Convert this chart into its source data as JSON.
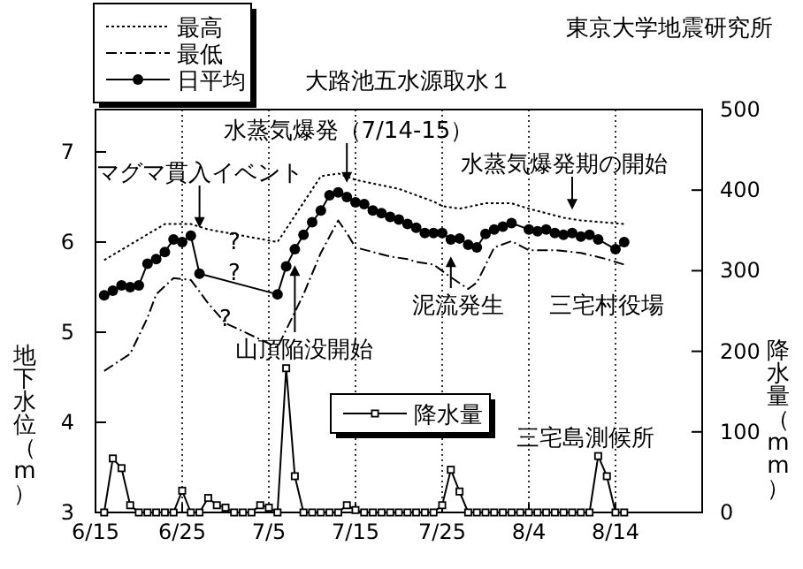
{
  "chart_data": {
    "type": "line",
    "title": "大路池五水源取水１",
    "ylabel": "地下水位（m）",
    "y2label": "降水量（mm）",
    "xlim": [
      "--06-15",
      "--08-24"
    ],
    "xticks": [
      {
        "value": "--06-15",
        "label": "6/15"
      },
      {
        "value": "--06-25",
        "label": "6/25"
      },
      {
        "value": "--07-05",
        "label": "7/5"
      },
      {
        "value": "--07-15",
        "label": "7/15"
      },
      {
        "value": "--07-25",
        "label": "7/25"
      },
      {
        "value": "--08-04",
        "label": "8/4"
      },
      {
        "value": "--08-14",
        "label": "8/14"
      }
    ],
    "ylim": [
      3,
      7.47
    ],
    "yticks": [
      3,
      4,
      5,
      6,
      7
    ],
    "y2lim": [
      0,
      500
    ],
    "y2ticks": [
      0,
      100,
      200,
      300,
      400,
      500
    ],
    "grid": "x",
    "legend": "top left",
    "series": [
      {
        "name": "最高",
        "color": "#000000",
        "line_style": "dotted",
        "marker": "none",
        "x": [
          "--06-16",
          "--06-23",
          "--06-26",
          "--06-28",
          "--07-06",
          "--07-11",
          "--07-13",
          "--07-15",
          "--07-18",
          "--07-20",
          "--07-24",
          "--07-25",
          "--07-27",
          "--07-30",
          "--08-02",
          "--08-04",
          "--08-08",
          "--08-10",
          "--08-15"
        ],
        "values": [
          5.8,
          6.2,
          6.2,
          6.14,
          6.0,
          6.73,
          6.76,
          6.69,
          6.63,
          6.59,
          6.45,
          6.4,
          6.37,
          6.43,
          6.43,
          6.37,
          6.27,
          6.24,
          6.2
        ]
      },
      {
        "name": "最低",
        "color": "#000000",
        "line_style": "dashed",
        "marker": "none",
        "x": [
          "--06-16",
          "--06-19",
          "--06-21",
          "--06-22",
          "--06-24",
          "--06-26",
          "--06-28",
          "--06-30",
          "--07-06",
          "--07-09",
          "--07-11",
          "--07-13",
          "--07-14",
          "--07-15",
          "--07-19",
          "--07-21",
          "--07-22",
          "--07-24",
          "--07-26",
          "--07-28",
          "--07-29",
          "--07-31",
          "--08-02",
          "--08-04",
          "--08-07",
          "--08-10",
          "--08-13",
          "--08-15"
        ],
        "values": [
          4.57,
          4.76,
          5.16,
          5.42,
          5.6,
          5.58,
          5.32,
          5.1,
          4.83,
          5.42,
          5.88,
          6.24,
          6.1,
          5.94,
          5.84,
          5.81,
          5.78,
          5.75,
          5.61,
          5.48,
          5.55,
          5.94,
          6.01,
          5.91,
          5.91,
          5.88,
          5.81,
          5.75
        ]
      },
      {
        "name": "日平均",
        "color": "#000000",
        "line_style": "solid",
        "marker": "circle",
        "x": [
          "--06-16",
          "--06-17",
          "--06-18",
          "--06-19",
          "--06-20",
          "--06-21",
          "--06-22",
          "--06-23",
          "--06-24",
          "--06-25",
          "--06-26",
          "--06-27",
          "--07-06",
          "--07-07",
          "--07-08",
          "--07-09",
          "--07-10",
          "--07-11",
          "--07-12",
          "--07-13",
          "--07-14",
          "--07-15",
          "--07-16",
          "--07-17",
          "--07-18",
          "--07-19",
          "--07-20",
          "--07-21",
          "--07-22",
          "--07-23",
          "--07-24",
          "--07-25",
          "--07-26",
          "--07-27",
          "--07-28",
          "--07-29",
          "--07-30",
          "--07-31",
          "--08-01",
          "--08-02",
          "--08-04",
          "--08-05",
          "--08-06",
          "--08-07",
          "--08-08",
          "--08-09",
          "--08-10",
          "--08-11",
          "--08-12",
          "--08-14",
          "--08-15"
        ],
        "values": [
          5.41,
          5.46,
          5.52,
          5.5,
          5.52,
          5.76,
          5.81,
          5.89,
          6.03,
          6.0,
          6.07,
          5.65,
          5.42,
          5.73,
          5.92,
          6.08,
          6.22,
          6.35,
          6.52,
          6.55,
          6.5,
          6.44,
          6.42,
          6.35,
          6.32,
          6.28,
          6.25,
          6.2,
          6.16,
          6.1,
          6.1,
          6.1,
          6.03,
          6.04,
          5.97,
          5.94,
          6.09,
          6.14,
          6.17,
          6.21,
          6.14,
          6.12,
          6.14,
          6.1,
          6.08,
          6.1,
          6.06,
          6.08,
          6.03,
          5.92,
          6.0
        ]
      },
      {
        "name": "降水量",
        "color": "#000000",
        "line_style": "solid",
        "marker": "square",
        "axis": "y2",
        "x": [
          "--06-16",
          "--06-17",
          "--06-18",
          "--06-19",
          "--06-20",
          "--06-21",
          "--06-22",
          "--06-23",
          "--06-24",
          "--06-25",
          "--06-26",
          "--06-27",
          "--06-28",
          "--06-29",
          "--06-30",
          "--07-01",
          "--07-02",
          "--07-03",
          "--07-04",
          "--07-05",
          "--07-06",
          "--07-07",
          "--07-08",
          "--07-09",
          "--07-10",
          "--07-11",
          "--07-12",
          "--07-13",
          "--07-14",
          "--07-15",
          "--07-16",
          "--07-17",
          "--07-18",
          "--07-19",
          "--07-20",
          "--07-21",
          "--07-22",
          "--07-23",
          "--07-24",
          "--07-25",
          "--07-26",
          "--07-27",
          "--07-28",
          "--07-29",
          "--07-30",
          "--07-31",
          "--08-01",
          "--08-02",
          "--08-03",
          "--08-04",
          "--08-05",
          "--08-06",
          "--08-07",
          "--08-08",
          "--08-09",
          "--08-10",
          "--08-11",
          "--08-12",
          "--08-13",
          "--08-14",
          "--08-15"
        ],
        "values": [
          0,
          67,
          55,
          9,
          0,
          0,
          0,
          0,
          0,
          27,
          0,
          0,
          18,
          9,
          6,
          0,
          0,
          0,
          9,
          6,
          0,
          179,
          45,
          0,
          0,
          0,
          0,
          0,
          9,
          3,
          0,
          0,
          0,
          0,
          0,
          0,
          0,
          0,
          0,
          9,
          53,
          26,
          0,
          0,
          0,
          0,
          0,
          0,
          0,
          0,
          0,
          0,
          0,
          0,
          0,
          0,
          0,
          70,
          45,
          0,
          0
        ]
      }
    ],
    "annotations": [
      "東京大学地震研究所",
      {
        "text": "マグマ貫入イベント",
        "x": "--06-27",
        "y": 6.1
      },
      {
        "text": "水蒸気爆発（7/14-15）",
        "x": "--07-14",
        "y": 6.6
      },
      {
        "text": "山頂陥没開始",
        "x": "--07-08",
        "y": 5.8
      },
      {
        "text": "泥流発生",
        "x": "--07-26",
        "y": 5.9
      },
      {
        "text": "水蒸気爆発期の開始",
        "x": "--08-09",
        "y": 6.3
      },
      "三宅村役場",
      "三宅島測候所",
      {
        "text": "?",
        "x": "--07-01",
        "y": 6.02
      },
      {
        "text": "?",
        "x": "--07-01",
        "y": 5.56
      },
      {
        "text": "?",
        "x": "--06-30",
        "y": 5.17
      }
    ]
  }
}
